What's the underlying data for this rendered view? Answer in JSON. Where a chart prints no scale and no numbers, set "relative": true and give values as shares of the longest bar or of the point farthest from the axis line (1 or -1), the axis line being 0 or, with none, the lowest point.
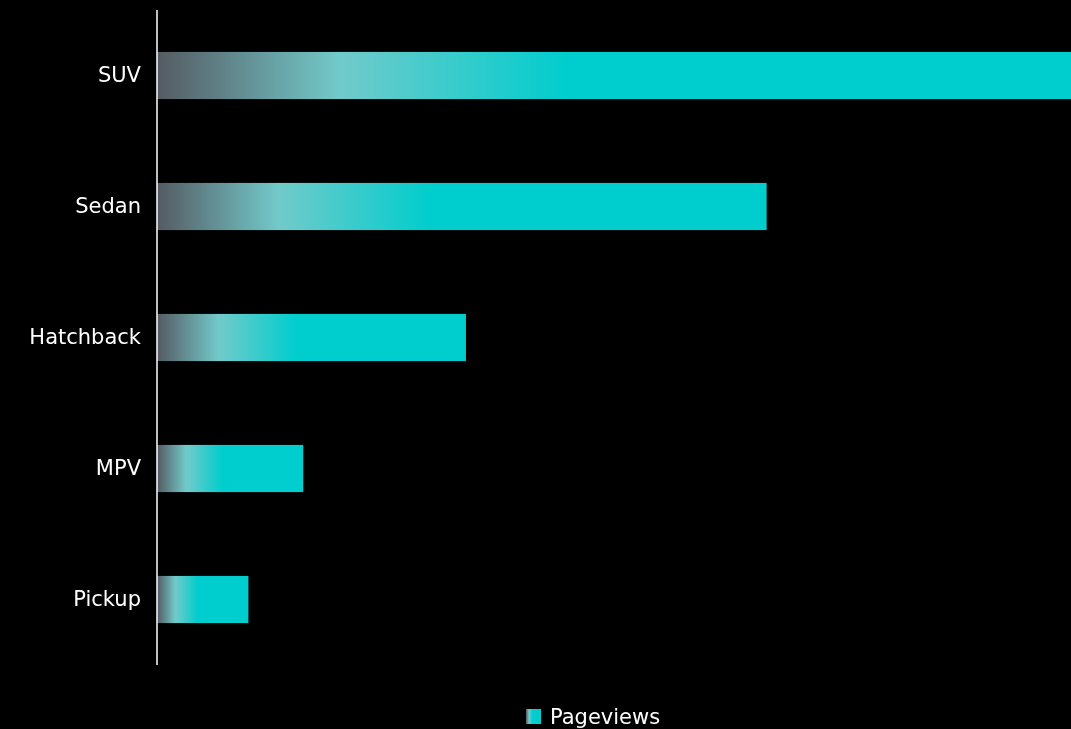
{
  "chart_data": {
    "type": "bar",
    "orientation": "horizontal",
    "relative": true,
    "categories": [
      "SUV",
      "Sedan",
      "Hatchback",
      "MPV",
      "Pickup"
    ],
    "series": [
      {
        "name": "Pageviews",
        "color": "#00cdcd",
        "values": [
          1,
          0.667,
          0.338,
          0.16,
          0.1
        ]
      }
    ],
    "legend": "bottom"
  }
}
